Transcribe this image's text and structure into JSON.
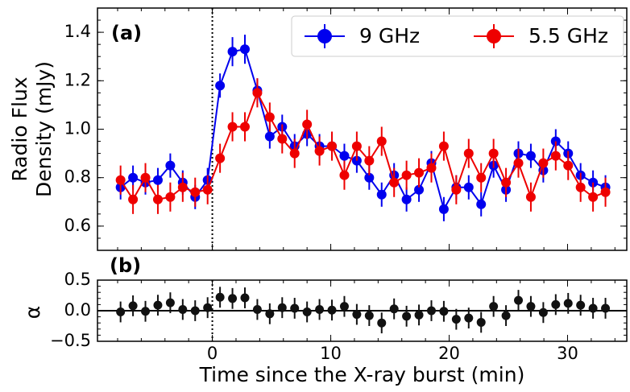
{
  "chart_data": [
    {
      "type": "line",
      "annotation": "(a)",
      "ylabel": [
        "Radio Flux",
        "Density (mJy)"
      ],
      "x": [
        -7.75,
        -6.7,
        -5.65,
        -4.6,
        -3.55,
        -2.5,
        -1.45,
        -0.4,
        0.65,
        1.7,
        2.75,
        3.8,
        4.85,
        5.9,
        6.95,
        8,
        9.05,
        10.1,
        11.15,
        12.2,
        13.25,
        14.3,
        15.35,
        16.4,
        17.45,
        18.5,
        19.55,
        20.6,
        21.65,
        22.7,
        23.75,
        24.8,
        25.85,
        26.9,
        27.95,
        29,
        30.05,
        31.1,
        32.15,
        33.2
      ],
      "series": [
        {
          "name": "9 GHz",
          "color": "#0000ee",
          "values": [
            0.76,
            0.8,
            0.78,
            0.79,
            0.85,
            0.78,
            0.72,
            0.79,
            1.18,
            1.32,
            1.33,
            1.16,
            0.97,
            1.01,
            0.93,
            0.98,
            0.93,
            0.93,
            0.89,
            0.87,
            0.8,
            0.73,
            0.81,
            0.71,
            0.75,
            0.86,
            0.67,
            0.76,
            0.76,
            0.69,
            0.85,
            0.75,
            0.9,
            0.89,
            0.83,
            0.95,
            0.9,
            0.81,
            0.78,
            0.76
          ],
          "errors": [
            0.05,
            0.05,
            0.05,
            0.05,
            0.05,
            0.05,
            0.05,
            0.05,
            0.05,
            0.06,
            0.06,
            0.05,
            0.05,
            0.05,
            0.05,
            0.05,
            0.05,
            0.05,
            0.05,
            0.05,
            0.05,
            0.05,
            0.05,
            0.05,
            0.05,
            0.05,
            0.05,
            0.05,
            0.05,
            0.05,
            0.05,
            0.05,
            0.05,
            0.05,
            0.05,
            0.05,
            0.05,
            0.05,
            0.05,
            0.05
          ]
        },
        {
          "name": "5.5 GHz",
          "color": "#ee0000",
          "values": [
            0.79,
            0.71,
            0.8,
            0.71,
            0.72,
            0.76,
            0.74,
            0.75,
            0.88,
            1.01,
            1.01,
            1.15,
            1.05,
            0.96,
            0.9,
            1.02,
            0.91,
            0.93,
            0.81,
            0.93,
            0.87,
            0.95,
            0.78,
            0.81,
            0.82,
            0.84,
            0.93,
            0.75,
            0.9,
            0.8,
            0.9,
            0.78,
            0.86,
            0.72,
            0.86,
            0.89,
            0.85,
            0.76,
            0.72,
            0.74
          ],
          "errors": [
            0.06,
            0.06,
            0.06,
            0.06,
            0.06,
            0.06,
            0.06,
            0.06,
            0.06,
            0.06,
            0.06,
            0.06,
            0.06,
            0.06,
            0.06,
            0.06,
            0.06,
            0.06,
            0.06,
            0.06,
            0.06,
            0.06,
            0.06,
            0.06,
            0.06,
            0.06,
            0.06,
            0.06,
            0.06,
            0.06,
            0.06,
            0.06,
            0.06,
            0.06,
            0.06,
            0.06,
            0.06,
            0.06,
            0.06,
            0.06
          ]
        }
      ],
      "xlim": [
        -9.7,
        35
      ],
      "xticks": [
        0,
        10,
        20,
        30
      ],
      "ylim": [
        0.5,
        1.5
      ],
      "yticks": [
        0.6,
        0.8,
        {
          "value": 1,
          "label": "1.0"
        },
        1.2,
        1.4
      ],
      "legend": "upper right"
    },
    {
      "type": "scatter",
      "annotation": "(b)",
      "ylabel": "α",
      "xlabel": "Time since the X-ray burst (min)",
      "x": [
        -7.75,
        -6.7,
        -5.65,
        -4.6,
        -3.55,
        -2.5,
        -1.45,
        -0.4,
        0.65,
        1.7,
        2.75,
        3.8,
        4.85,
        5.9,
        6.95,
        8,
        9.05,
        10.1,
        11.15,
        12.2,
        13.25,
        14.3,
        15.35,
        16.4,
        17.45,
        18.5,
        19.55,
        20.6,
        21.65,
        22.7,
        23.75,
        24.8,
        25.85,
        26.9,
        27.95,
        29,
        30.05,
        31.1,
        32.15,
        33.2
      ],
      "series": [
        {
          "color": "#111111",
          "values": [
            -0.02,
            0.08,
            -0.01,
            0.09,
            0.13,
            0.02,
            0.0,
            0.05,
            0.22,
            0.2,
            0.21,
            0.02,
            -0.05,
            0.05,
            0.04,
            -0.02,
            0.02,
            0.01,
            0.07,
            -0.06,
            -0.08,
            -0.2,
            0.03,
            -0.09,
            -0.07,
            0.0,
            -0.01,
            -0.14,
            -0.12,
            -0.19,
            0.07,
            -0.08,
            0.17,
            0.07,
            -0.03,
            0.1,
            0.12,
            0.09,
            0.04,
            0.04
          ],
          "errors": [
            0.17,
            0.17,
            0.17,
            0.17,
            0.17,
            0.17,
            0.17,
            0.17,
            0.17,
            0.17,
            0.17,
            0.17,
            0.17,
            0.17,
            0.17,
            0.17,
            0.17,
            0.17,
            0.17,
            0.17,
            0.17,
            0.17,
            0.17,
            0.17,
            0.17,
            0.17,
            0.17,
            0.17,
            0.17,
            0.17,
            0.17,
            0.17,
            0.17,
            0.17,
            0.17,
            0.17,
            0.17,
            0.17,
            0.17,
            0.17
          ]
        }
      ],
      "xlim": [
        -9.7,
        35
      ],
      "xticks": [
        0,
        10,
        20,
        30
      ],
      "ylim": [
        -0.5,
        0.5
      ],
      "yticks": [
        {
          "value": -0.5,
          "label": "−0.5"
        },
        {
          "value": 0,
          "label": "0.0"
        },
        0.5
      ]
    }
  ]
}
